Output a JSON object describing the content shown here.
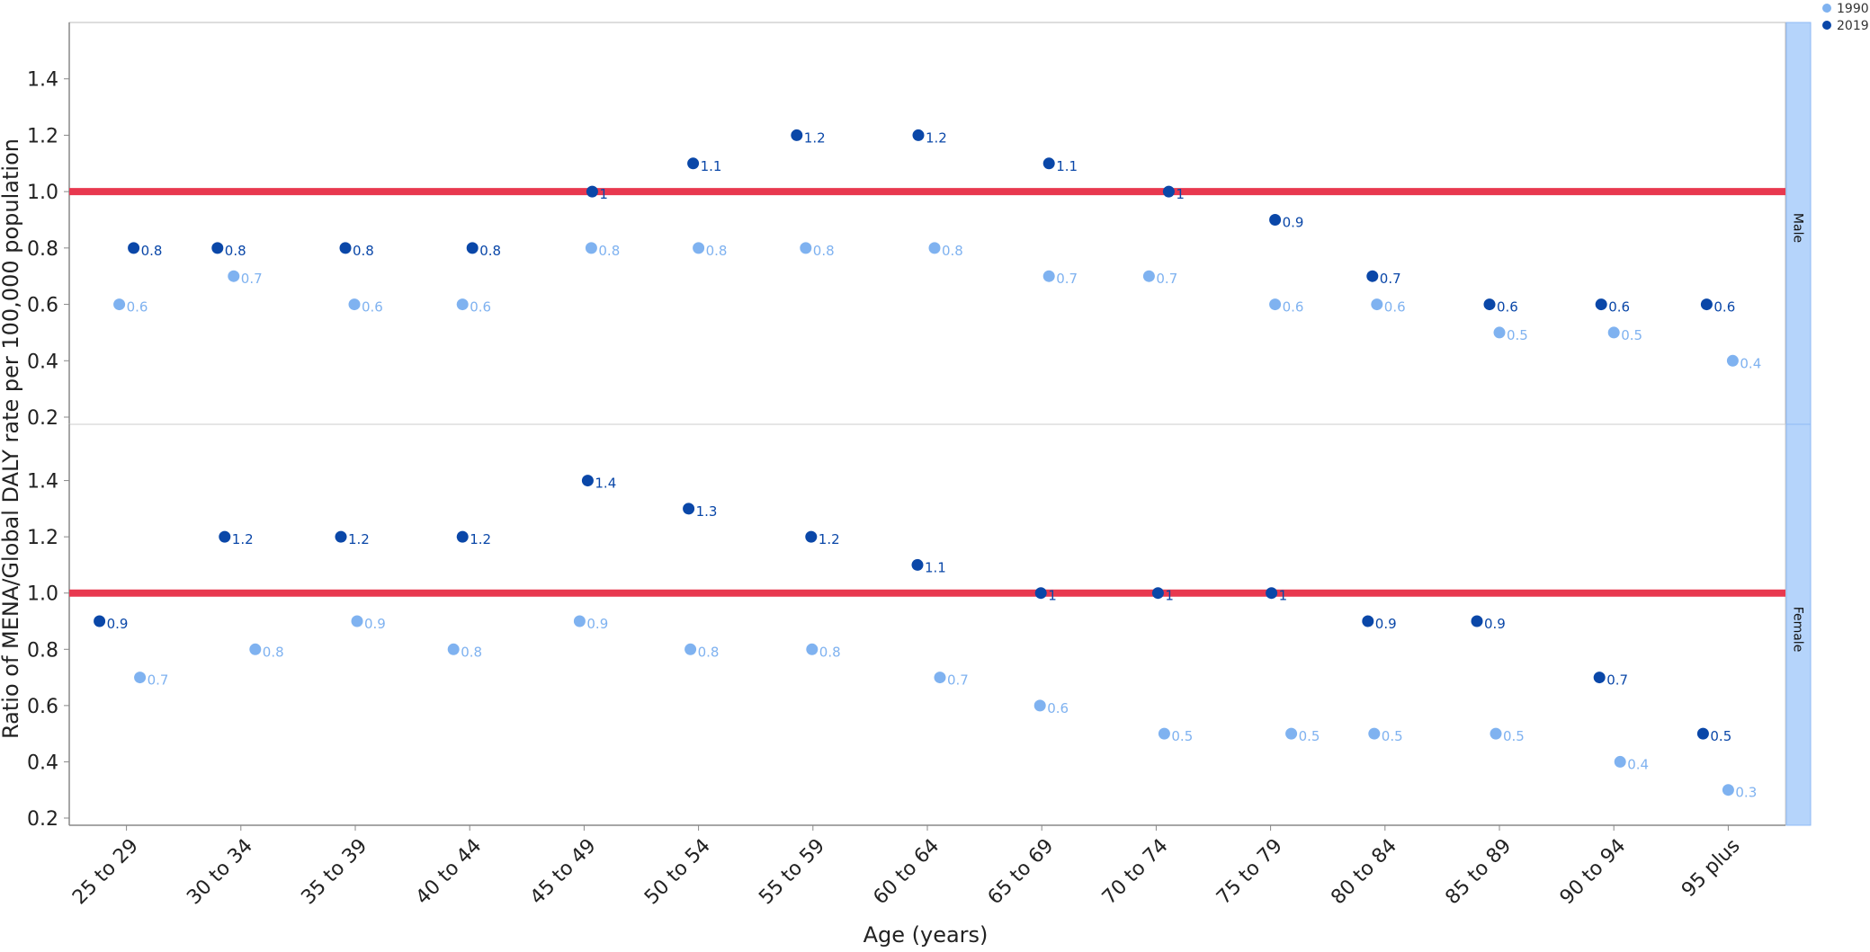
{
  "chart_data": {
    "type": "scatter",
    "xlabel": "Age (years)",
    "ylabel": "Ratio of MENA/Global DALY rate per 100,000 population",
    "categories": [
      "25 to 29",
      "30 to 34",
      "35 to 39",
      "40 to 44",
      "45 to 49",
      "50 to 54",
      "55 to 59",
      "60 to 64",
      "65 to 69",
      "70 to 74",
      "75 to 79",
      "80 to 84",
      "85 to 89",
      "90 to 94",
      "95 plus"
    ],
    "y_ticks": [
      "0.2",
      "0.4",
      "0.6",
      "0.8",
      "1.0",
      "1.2",
      "1.4"
    ],
    "ylim": [
      0.2,
      1.6
    ],
    "reference_line": 1.0,
    "colors": {
      "1990": "#7fb2f0",
      "2019": "#0a47a8",
      "reference": "#e8384f",
      "strip": "#b5d4fb"
    },
    "legend": [
      {
        "name": "1990",
        "color": "#7fb2f0"
      },
      {
        "name": "2019",
        "color": "#0a47a8"
      }
    ],
    "panels": [
      {
        "label": "Male",
        "series": [
          {
            "name": "1990",
            "values": [
              0.6,
              0.7,
              0.6,
              0.6,
              0.8,
              0.8,
              0.8,
              0.8,
              0.7,
              0.7,
              0.6,
              0.6,
              0.5,
              0.5,
              0.4
            ],
            "labels": [
              "0.6",
              "0.7",
              "0.6",
              "0.6",
              "0.8",
              "0.8",
              "0.8",
              "0.8",
              "0.7",
              "0.7",
              "0.6",
              "0.6",
              "0.5",
              "0.5",
              "0.4"
            ]
          },
          {
            "name": "2019",
            "values": [
              0.8,
              0.8,
              0.8,
              0.8,
              1.0,
              1.1,
              1.2,
              1.2,
              1.1,
              1.0,
              0.9,
              0.7,
              0.6,
              0.6,
              0.6
            ],
            "labels": [
              "0.8",
              "0.8",
              "0.8",
              "0.8",
              "1",
              "1.1",
              "1.2",
              "1.2",
              "1.1",
              "1",
              "0.9",
              "0.7",
              "0.6",
              "0.6",
              "0.6"
            ]
          }
        ]
      },
      {
        "label": "Female",
        "series": [
          {
            "name": "1990",
            "values": [
              0.7,
              0.8,
              0.9,
              0.8,
              0.9,
              0.8,
              0.8,
              0.7,
              0.6,
              0.5,
              0.5,
              0.5,
              0.5,
              0.4,
              0.3
            ],
            "labels": [
              "0.7",
              "0.8",
              "0.9",
              "0.8",
              "0.9",
              "0.8",
              "0.8",
              "0.7",
              "0.6",
              "0.5",
              "0.5",
              "0.5",
              "0.5",
              "0.4",
              "0.3"
            ]
          },
          {
            "name": "2019",
            "values": [
              0.9,
              1.2,
              1.2,
              1.2,
              1.4,
              1.3,
              1.2,
              1.1,
              1.0,
              1.0,
              1.0,
              0.9,
              0.9,
              0.7,
              0.5
            ],
            "labels": [
              "0.9",
              "1.2",
              "1.2",
              "1.2",
              "1.4",
              "1.3",
              "1.2",
              "1.1",
              "1",
              "1",
              "1",
              "0.9",
              "0.9",
              "0.7",
              "0.5"
            ]
          }
        ]
      }
    ]
  }
}
